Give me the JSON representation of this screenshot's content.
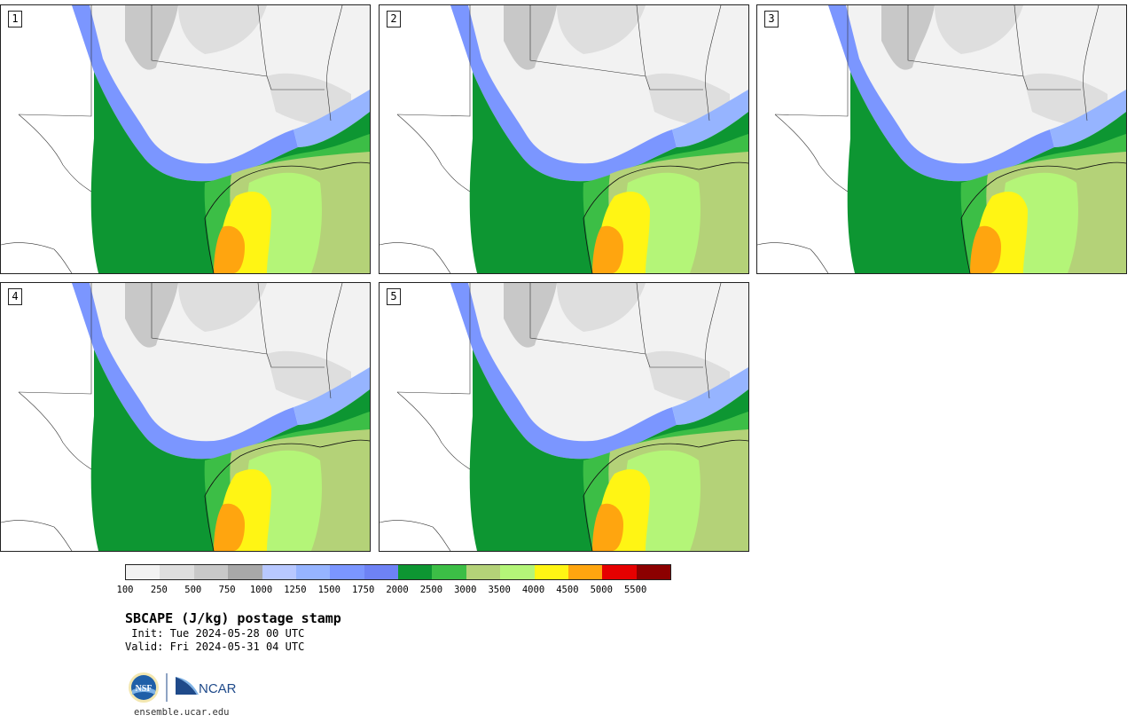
{
  "panels": [
    {
      "label": "1"
    },
    {
      "label": "2"
    },
    {
      "label": "3"
    },
    {
      "label": "4"
    },
    {
      "label": "5"
    }
  ],
  "colorbar": {
    "colors": [
      "#f2f2f2",
      "#dedede",
      "#c8c8c8",
      "#a8a8a8",
      "#b8c8ff",
      "#96b4ff",
      "#7b96ff",
      "#6e82f5",
      "#0d9632",
      "#3cbe46",
      "#b4d278",
      "#b4f578",
      "#fff514",
      "#ffa50f",
      "#e60000",
      "#8c0000"
    ],
    "tick_labels": [
      "100",
      "250",
      "500",
      "750",
      "1000",
      "1250",
      "1500",
      "1750",
      "2000",
      "2500",
      "3000",
      "3500",
      "4000",
      "4500",
      "5000",
      "5500"
    ]
  },
  "info": {
    "title": "SBCAPE (J/kg) postage stamp",
    "init": " Init: Tue 2024-05-28 00 UTC",
    "valid": "Valid: Fri 2024-05-31 04 UTC",
    "logo_nsf": "NSF",
    "logo_ncar": "NCAR",
    "url": "ensemble.ucar.edu"
  }
}
